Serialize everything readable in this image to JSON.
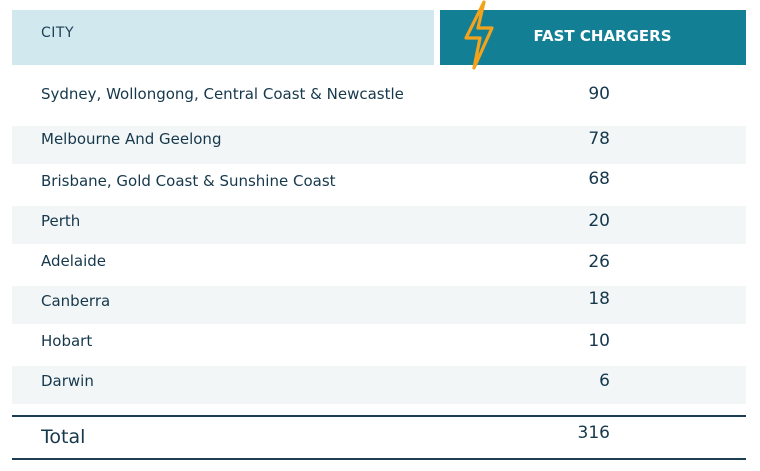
{
  "colors": {
    "header_city_bg": "#d1e8ef",
    "header_fast_bg": "#137f95",
    "bolt": "#f2a31b",
    "row_shade": "#f2f6f7",
    "text": "#16384c"
  },
  "icons": {
    "header": "lightning-bolt-icon"
  },
  "chart_data": {
    "type": "table",
    "columns": [
      "CITY",
      "FAST CHARGERS"
    ],
    "rows": [
      {
        "city": "Sydney, Wollongong, Central Coast & Newcastle",
        "fast_chargers": "90"
      },
      {
        "city": "Melbourne And Geelong",
        "fast_chargers": "78"
      },
      {
        "city": "Brisbane, Gold Coast & Sunshine Coast",
        "fast_chargers": "68"
      },
      {
        "city": "Perth",
        "fast_chargers": "20"
      },
      {
        "city": "Adelaide",
        "fast_chargers": "26"
      },
      {
        "city": "Canberra",
        "fast_chargers": "18"
      },
      {
        "city": "Hobart",
        "fast_chargers": "10"
      },
      {
        "city": "Darwin",
        "fast_chargers": "6"
      }
    ],
    "total": {
      "label": "Total",
      "fast_chargers": "316"
    }
  }
}
